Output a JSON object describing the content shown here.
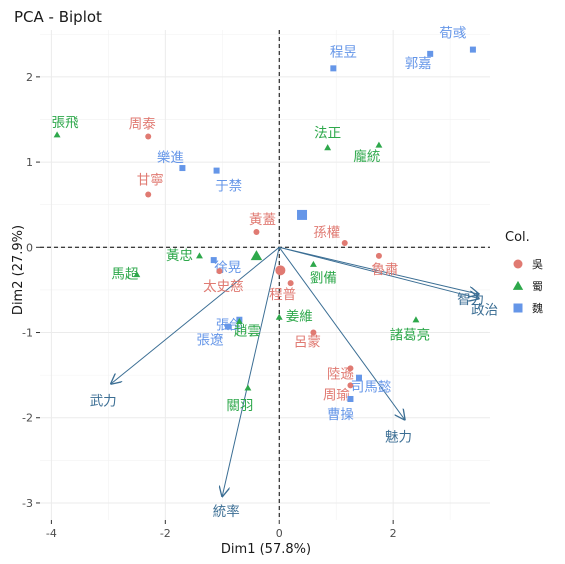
{
  "chart_data": {
    "type": "scatter",
    "title": "PCA - Biplot",
    "xlabel": "Dim1 (57.8%)",
    "ylabel": "Dim2 (27.9%)",
    "xlim": [
      -4.2,
      3.7
    ],
    "ylim": [
      -3.2,
      2.55
    ],
    "xticks": [
      -4,
      -2,
      0,
      2
    ],
    "yticks": [
      -3,
      -2,
      -1,
      0,
      1,
      2
    ],
    "grid": true,
    "legend_title": "Col.",
    "legend_position": "right",
    "groups": [
      {
        "name": "吳",
        "color": "#e07a72",
        "shape": "circle"
      },
      {
        "name": "蜀",
        "color": "#2ea84b",
        "shape": "triangle"
      },
      {
        "name": "魏",
        "color": "#6596e8",
        "shape": "square"
      }
    ],
    "points": [
      {
        "label": "荀彧",
        "group": "魏",
        "x": 3.4,
        "y": 2.32
      },
      {
        "label": "郭嘉",
        "group": "魏",
        "x": 2.65,
        "y": 2.27
      },
      {
        "label": "程昱",
        "group": "魏",
        "x": 0.95,
        "y": 2.1
      },
      {
        "label": "張飛",
        "group": "蜀",
        "x": -3.9,
        "y": 1.32
      },
      {
        "label": "周泰",
        "group": "吳",
        "x": -2.3,
        "y": 1.3
      },
      {
        "label": "法正",
        "group": "蜀",
        "x": 0.85,
        "y": 1.17
      },
      {
        "label": "龐統",
        "group": "蜀",
        "x": 1.75,
        "y": 1.2
      },
      {
        "label": "樂進",
        "group": "魏",
        "x": -1.7,
        "y": 0.93
      },
      {
        "label": "于禁",
        "group": "魏",
        "x": -1.1,
        "y": 0.9
      },
      {
        "label": "甘寧",
        "group": "吳",
        "x": -2.3,
        "y": 0.62
      },
      {
        "label": "黃蓋",
        "group": "吳",
        "x": -0.4,
        "y": 0.18
      },
      {
        "label": "孫權",
        "group": "吳",
        "x": 1.15,
        "y": 0.05
      },
      {
        "label": "黃忠",
        "group": "蜀",
        "x": -1.4,
        "y": -0.1
      },
      {
        "label": "徐晃",
        "group": "魏",
        "x": -1.15,
        "y": -0.15
      },
      {
        "label": "馬超",
        "group": "蜀",
        "x": -2.5,
        "y": -0.32
      },
      {
        "label": "太史慈",
        "group": "吳",
        "x": -1.05,
        "y": -0.28
      },
      {
        "label": "程普",
        "group": "吳",
        "x": 0.2,
        "y": -0.42
      },
      {
        "label": "劉備",
        "group": "蜀",
        "x": 0.6,
        "y": -0.2
      },
      {
        "label": "魯肅",
        "group": "吳",
        "x": 1.75,
        "y": -0.1
      },
      {
        "label": "張郃",
        "group": "魏",
        "x": -0.7,
        "y": -0.85
      },
      {
        "label": "張遼",
        "group": "魏",
        "x": -0.9,
        "y": -0.93
      },
      {
        "label": "趙雲",
        "group": "蜀",
        "x": -0.7,
        "y": -0.87
      },
      {
        "label": "姜維",
        "group": "蜀",
        "x": 0.0,
        "y": -0.82
      },
      {
        "label": "諸葛亮",
        "group": "蜀",
        "x": 2.4,
        "y": -0.85
      },
      {
        "label": "呂蒙",
        "group": "吳",
        "x": 0.6,
        "y": -1.0
      },
      {
        "label": "陸遜",
        "group": "吳",
        "x": 1.25,
        "y": -1.42
      },
      {
        "label": "周瑜",
        "group": "吳",
        "x": 1.25,
        "y": -1.62
      },
      {
        "label": "司馬懿",
        "group": "魏",
        "x": 1.4,
        "y": -1.53
      },
      {
        "label": "曹操",
        "group": "魏",
        "x": 1.25,
        "y": -1.78
      },
      {
        "label": "關羽",
        "group": "蜀",
        "x": -0.55,
        "y": -1.65
      }
    ],
    "centroids": [
      {
        "group": "吳",
        "x": 0.02,
        "y": -0.27
      },
      {
        "group": "蜀",
        "x": -0.4,
        "y": -0.1
      },
      {
        "group": "魏",
        "x": 0.4,
        "y": 0.38
      }
    ],
    "variables": [
      {
        "label": "智力",
        "x": 3.5,
        "y": -0.55
      },
      {
        "label": "政治",
        "x": 3.5,
        "y": -0.6
      },
      {
        "label": "武力",
        "x": -2.95,
        "y": -1.6
      },
      {
        "label": "魅力",
        "x": 2.2,
        "y": -2.02
      },
      {
        "label": "統率",
        "x": -1.0,
        "y": -2.92
      }
    ]
  }
}
